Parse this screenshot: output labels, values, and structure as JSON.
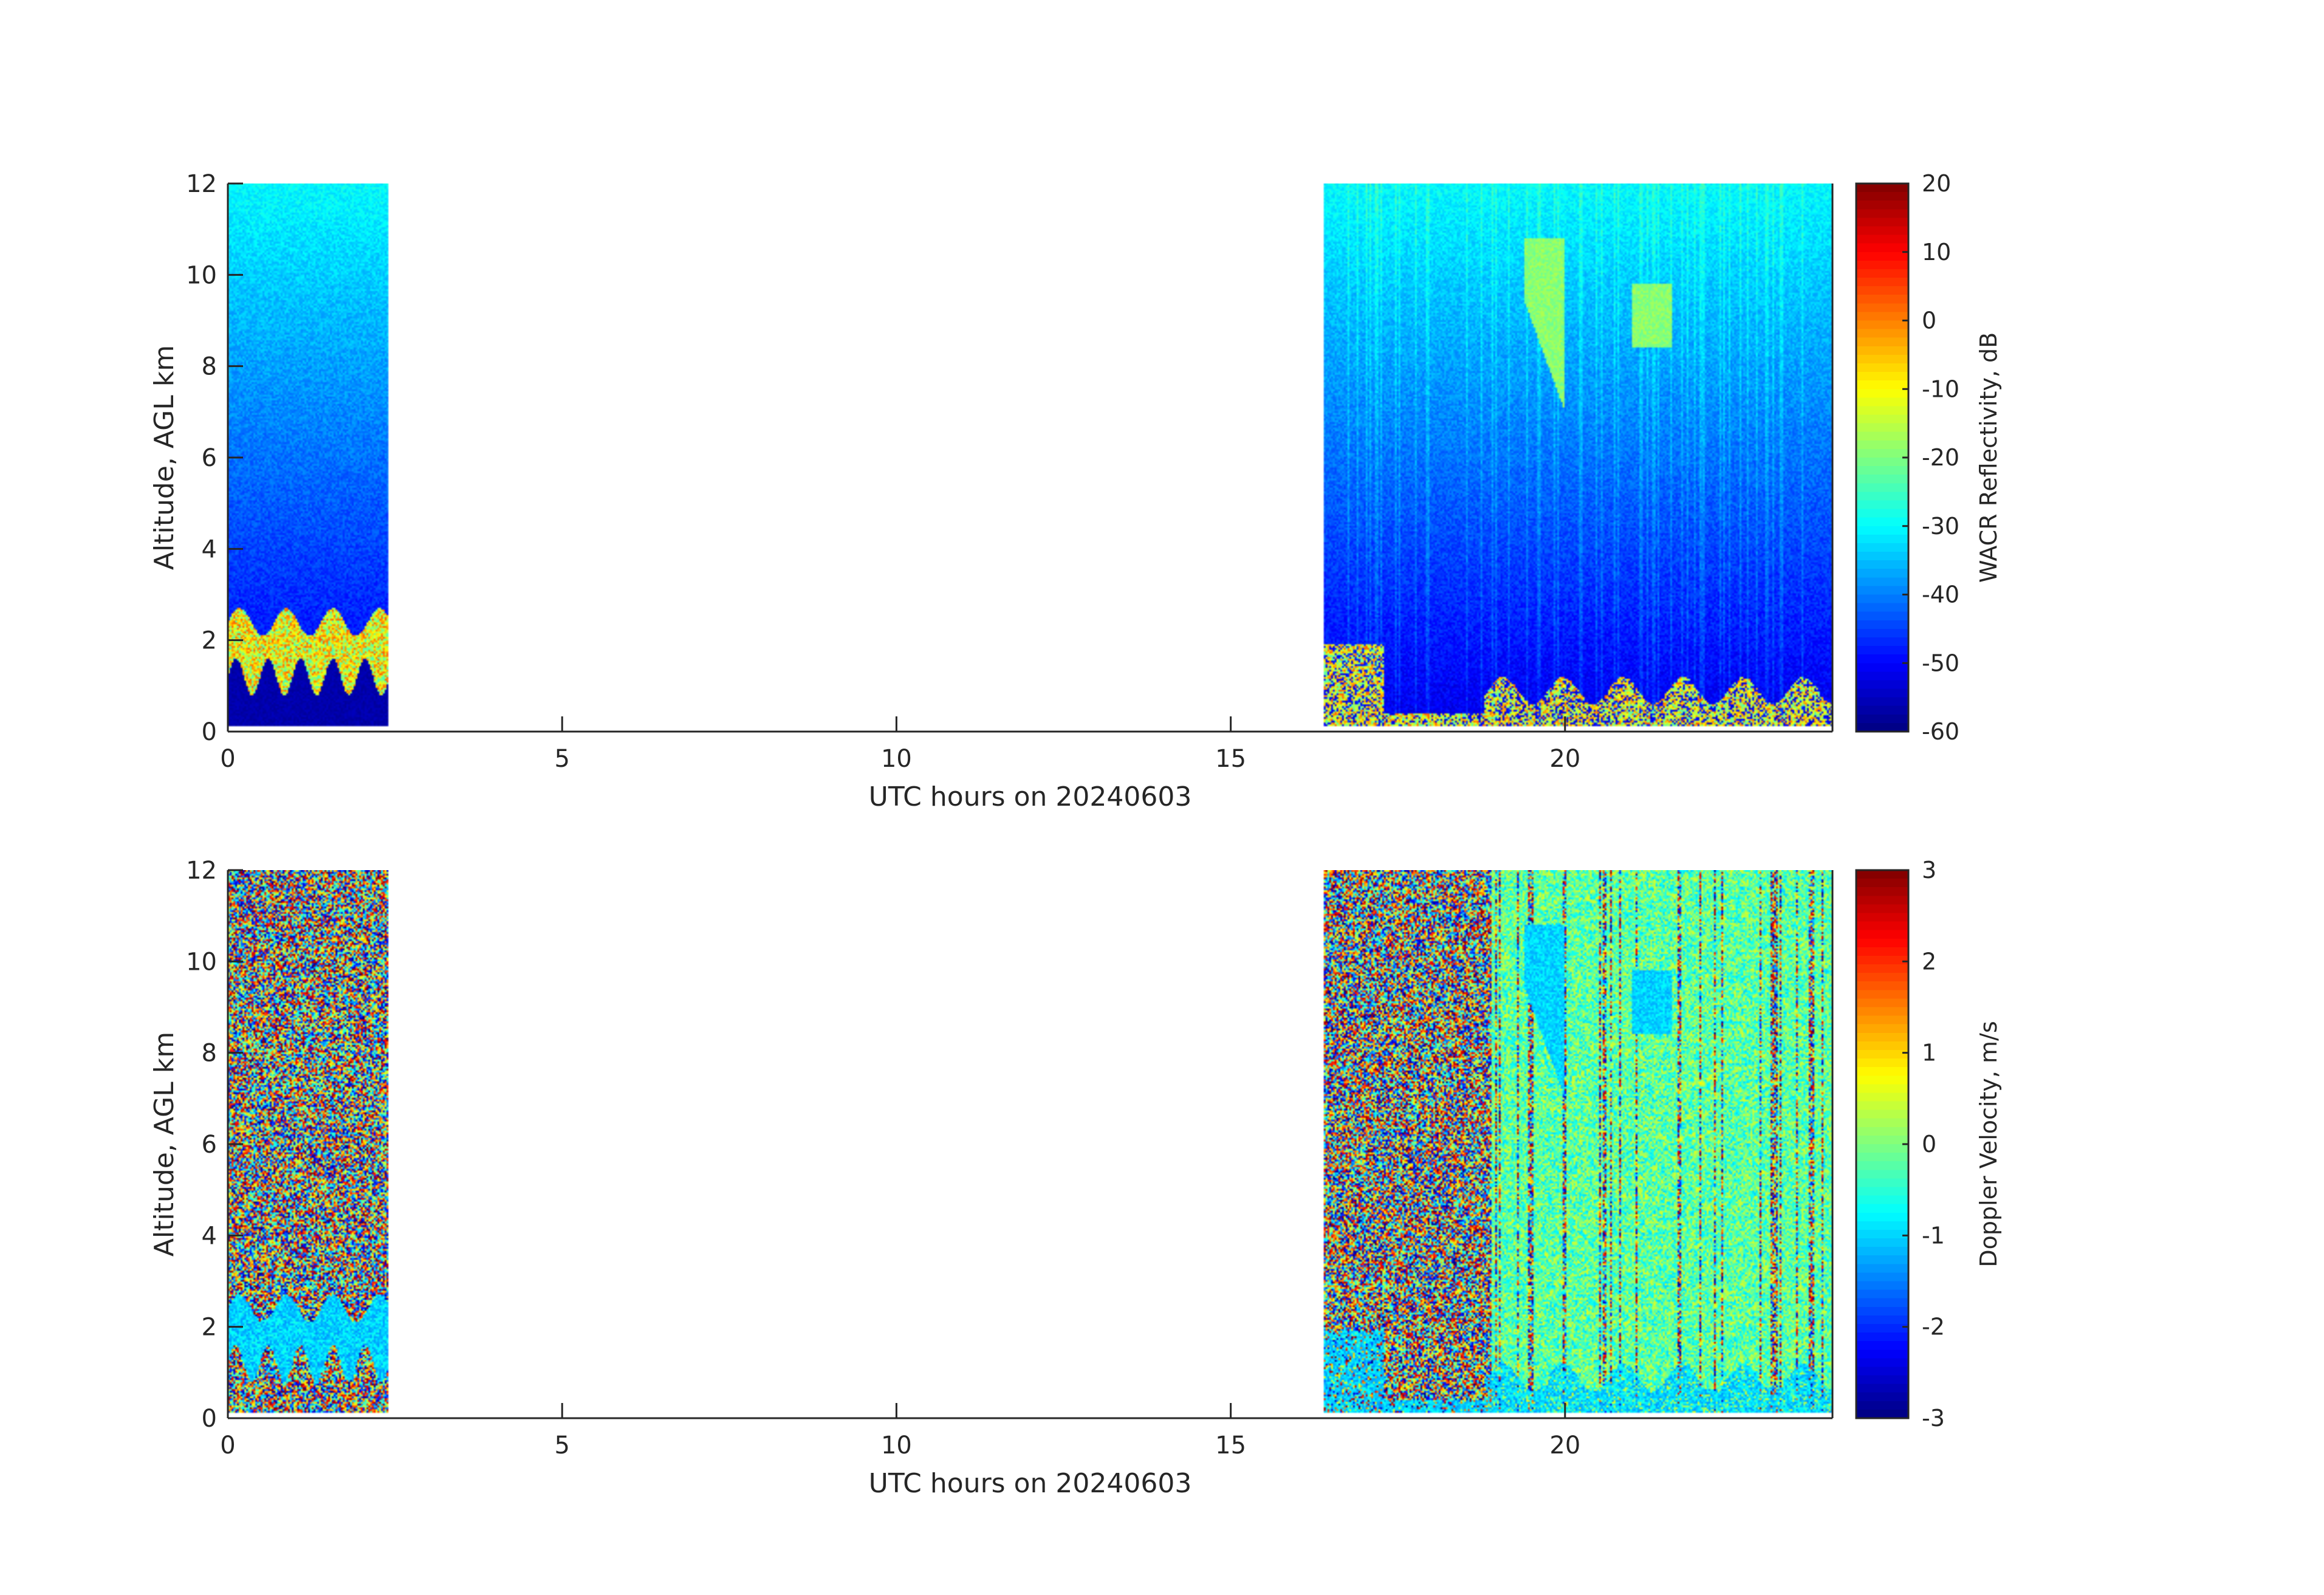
{
  "chart_data": [
    {
      "type": "heatmap",
      "title": "",
      "xlabel": "UTC hours on 20240603",
      "ylabel": "Altitude, AGL km",
      "xlim": [
        0,
        24
      ],
      "ylim": [
        0,
        12
      ],
      "xticks": [
        0,
        5,
        10,
        15,
        20
      ],
      "yticks": [
        0,
        2,
        4,
        6,
        8,
        10,
        12
      ],
      "data_segments_hours": [
        [
          0,
          2.4
        ],
        [
          16.4,
          24
        ]
      ],
      "colorbar": {
        "label": "WACR Reflectivity, dB",
        "range": [
          -60,
          20
        ],
        "ticks": [
          -60,
          -50,
          -40,
          -30,
          -20,
          -10,
          0,
          10,
          20
        ],
        "colormap": "jet"
      },
      "features": [
        {
          "desc": "low cloud layer",
          "hours": [
            0,
            2.4
          ],
          "altitude_km": [
            0.8,
            2.7
          ],
          "value_db": [
            -20,
            0
          ]
        },
        {
          "desc": "cirrus fallstreak",
          "hours": [
            19.4,
            20.0
          ],
          "altitude_km": [
            7,
            10.8
          ],
          "value_db": [
            -20,
            -15
          ]
        },
        {
          "desc": "boundary layer echoes",
          "hours": [
            16.4,
            24
          ],
          "altitude_km": [
            0.1,
            1.2
          ],
          "value_db": [
            -20,
            5
          ]
        }
      ]
    },
    {
      "type": "heatmap",
      "title": "",
      "xlabel": "UTC hours on 20240603",
      "ylabel": "Altitude, AGL km",
      "xlim": [
        0,
        24
      ],
      "ylim": [
        0,
        12
      ],
      "xticks": [
        0,
        5,
        10,
        15,
        20
      ],
      "yticks": [
        0,
        2,
        4,
        6,
        8,
        10,
        12
      ],
      "data_segments_hours": [
        [
          0,
          2.4
        ],
        [
          16.4,
          24
        ]
      ],
      "colorbar": {
        "label": "Doppler Velocity, m/s",
        "range": [
          -3,
          3
        ],
        "ticks": [
          -3,
          -2,
          -1,
          0,
          1,
          2,
          3
        ],
        "colormap": "jet"
      }
    }
  ]
}
